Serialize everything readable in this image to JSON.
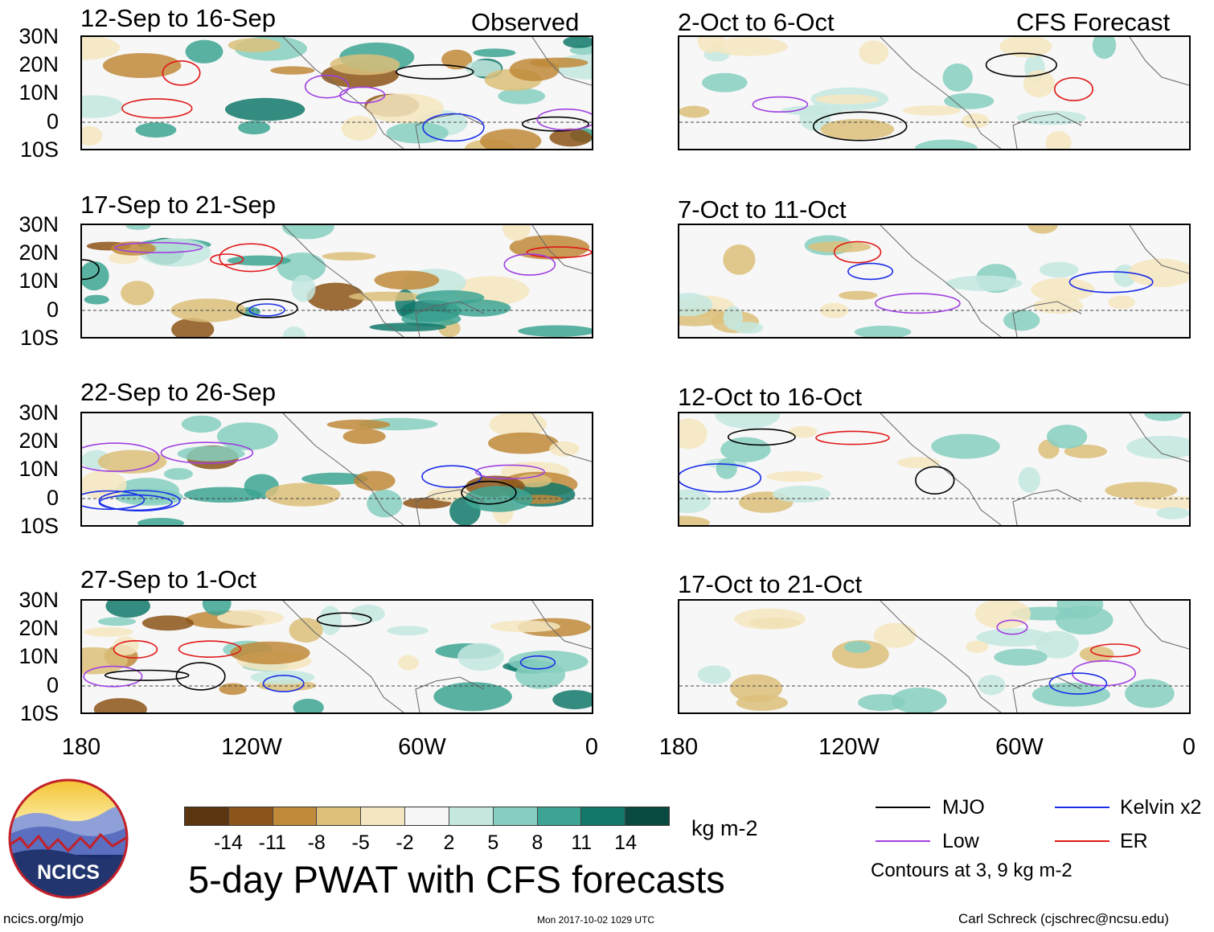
{
  "panels": [
    {
      "title": "12-Sep to 16-Sep",
      "tag": "Observed"
    },
    {
      "title": "2-Oct to 6-Oct",
      "tag": "CFS Forecast"
    },
    {
      "title": "17-Sep to 21-Sep",
      "tag": ""
    },
    {
      "title": "7-Oct to 11-Oct",
      "tag": ""
    },
    {
      "title": "22-Sep to 26-Sep",
      "tag": ""
    },
    {
      "title": "12-Oct to 16-Oct",
      "tag": ""
    },
    {
      "title": "27-Sep to 1-Oct",
      "tag": ""
    },
    {
      "title": "17-Oct to 21-Oct",
      "tag": ""
    }
  ],
  "lat_labels": [
    "30N",
    "20N",
    "10N",
    "0",
    "10S"
  ],
  "lon_labels": [
    "180",
    "120W",
    "60W",
    "0"
  ],
  "colorbar": {
    "colors": [
      "#5a3510",
      "#8c5418",
      "#c08a3a",
      "#dcc07a",
      "#f4e6c0",
      "#f7f7f7",
      "#c4e8e0",
      "#86cfc0",
      "#3da493",
      "#12786a",
      "#0a4a40"
    ],
    "ticks": [
      "-14",
      "-11",
      "-8",
      "-5",
      "-2",
      "2",
      "5",
      "8",
      "11",
      "14"
    ],
    "units": "kg m-2"
  },
  "main_title": "5-day PWAT with CFS forecasts",
  "legend": {
    "items": [
      {
        "label": "MJO",
        "color": "#000000"
      },
      {
        "label": "Kelvin x2",
        "color": "#1a2ee8"
      },
      {
        "label": "Low",
        "color": "#a040e0"
      },
      {
        "label": "ER",
        "color": "#e01818"
      }
    ],
    "note": "Contours at 3, 9 kg m-2"
  },
  "logo_text": "NCICS",
  "footer": {
    "left": "ncics.org/mjo",
    "center": "Mon 2017-10-02 1029 UTC",
    "right": "Carl Schreck (cjschrec@ncsu.edu)"
  }
}
